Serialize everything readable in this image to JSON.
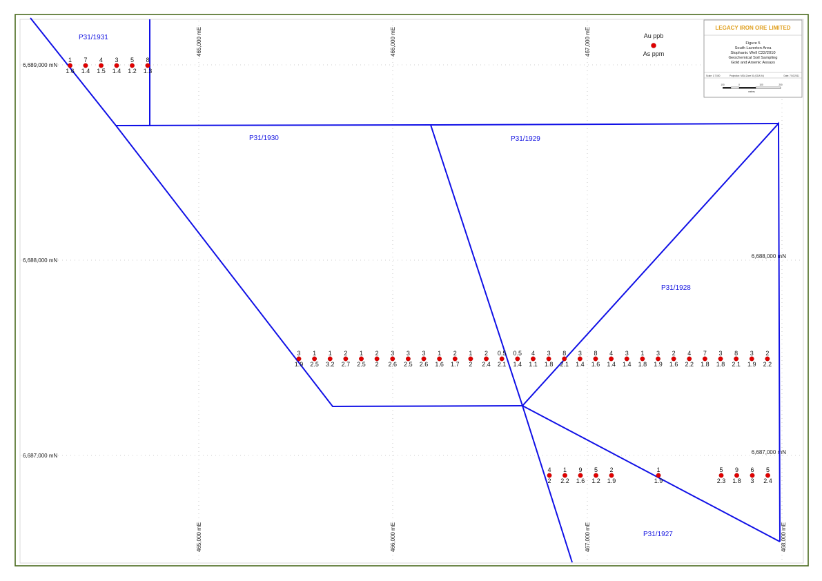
{
  "legend": {
    "au_label": "Au ppb",
    "as_label": "As ppm",
    "dot_color": "#e00000"
  },
  "title_block": {
    "company": "LEGACY IRON ORE LIMITED",
    "lines": [
      "Figure 5",
      "South Laverton Area",
      "Stophanic Well C22/2010",
      "Geochemical Soil Sampling",
      "Gold and Arsenic Assays"
    ],
    "scale": "Scale: 1:7,500",
    "projection": "Projection: MGA Zone 51 (GDA 94)",
    "date": "Date: 7/10/2011",
    "scale_ticks": [
      "100",
      "0",
      "100",
      "200"
    ],
    "scale_units": "metres"
  },
  "tenements": [
    {
      "id": "P31/1931"
    },
    {
      "id": "P31/1930"
    },
    {
      "id": "P31/1929"
    },
    {
      "id": "P31/1928"
    },
    {
      "id": "P31/1927"
    }
  ],
  "grid": {
    "eastings": [
      "465,000 mE",
      "466,000 mE",
      "467,000 mE",
      "468,000 mE"
    ],
    "northings": [
      "6,689,000 mN",
      "6,688,000 mN",
      "6,687,000 mN"
    ]
  },
  "samples": {
    "top_line": [
      {
        "au": "1",
        "as": "1.6"
      },
      {
        "au": "7",
        "as": "1.4"
      },
      {
        "au": "4",
        "as": "1.5"
      },
      {
        "au": "3",
        "as": "1.4"
      },
      {
        "au": "5",
        "as": "1.2"
      },
      {
        "au": "8",
        "as": "1.3"
      }
    ],
    "middle_line": [
      {
        "au": "3",
        "as": "1.9"
      },
      {
        "au": "1",
        "as": "2.5"
      },
      {
        "au": "1",
        "as": "3.2"
      },
      {
        "au": "2",
        "as": "2.7"
      },
      {
        "au": "1",
        "as": "2.5"
      },
      {
        "au": "2",
        "as": "2"
      },
      {
        "au": "3",
        "as": "2.6"
      },
      {
        "au": "3",
        "as": "2.5"
      },
      {
        "au": "3",
        "as": "2.6"
      },
      {
        "au": "1",
        "as": "1.6"
      },
      {
        "au": "2",
        "as": "1.7"
      },
      {
        "au": "1",
        "as": "2"
      },
      {
        "au": "2",
        "as": "2.4"
      },
      {
        "au": "0.5",
        "as": "2.1"
      },
      {
        "au": "0.5",
        "as": "1.4"
      },
      {
        "au": "4",
        "as": "1.1"
      },
      {
        "au": "3",
        "as": "1.8"
      },
      {
        "au": "8",
        "as": "2.1"
      },
      {
        "au": "3",
        "as": "1.4"
      },
      {
        "au": "8",
        "as": "1.6"
      },
      {
        "au": "4",
        "as": "1.4"
      },
      {
        "au": "3",
        "as": "1.4"
      },
      {
        "au": "1",
        "as": "1.8"
      },
      {
        "au": "3",
        "as": "1.9"
      },
      {
        "au": "2",
        "as": "1.6"
      },
      {
        "au": "4",
        "as": "2.2"
      },
      {
        "au": "7",
        "as": "1.8"
      },
      {
        "au": "3",
        "as": "1.8"
      },
      {
        "au": "8",
        "as": "2.1"
      },
      {
        "au": "3",
        "as": "1.9"
      },
      {
        "au": "2",
        "as": "2.2"
      }
    ],
    "bottom_left": [
      {
        "au": "4",
        "as": "2"
      },
      {
        "au": "1",
        "as": "2.2"
      },
      {
        "au": "9",
        "as": "1.6"
      },
      {
        "au": "5",
        "as": "1.2"
      },
      {
        "au": "2",
        "as": "1.9"
      }
    ],
    "bottom_single": [
      {
        "au": "1",
        "as": "1.9"
      }
    ],
    "bottom_right": [
      {
        "au": "5",
        "as": "2.3"
      },
      {
        "au": "9",
        "as": "1.8"
      },
      {
        "au": "6",
        "as": "3"
      },
      {
        "au": "5",
        "as": "2.4"
      }
    ]
  }
}
